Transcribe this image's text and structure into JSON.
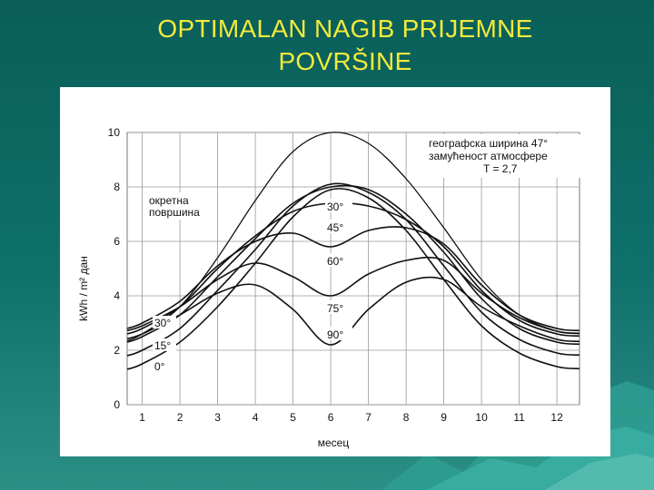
{
  "slide": {
    "title_line1": "OPTIMALAN NAGIB PRIJEMNE",
    "title_line2": "POVRŠINE"
  },
  "colors": {
    "title": "#f2ea3c",
    "background": "#0f706a",
    "curve": "#111111"
  },
  "chart_data": {
    "type": "line",
    "xlabel": "месец",
    "ylabel": "kWh / m² дан",
    "x": [
      1,
      2,
      3,
      4,
      5,
      6,
      7,
      8,
      9,
      10,
      11,
      12
    ],
    "xlim": [
      0.6,
      12.6
    ],
    "ylim": [
      0,
      10
    ],
    "xticks": [
      "1",
      "2",
      "3",
      "4",
      "5",
      "6",
      "7",
      "8",
      "9",
      "10",
      "11",
      "12"
    ],
    "yticks": [
      "0",
      "2",
      "4",
      "6",
      "8",
      "10"
    ],
    "grid": true,
    "annotation_lines": [
      "географска ширина 47°",
      "замућеност атмосфере",
      "T = 2,7"
    ],
    "series": [
      {
        "name": "окретна површина",
        "values": [
          2.6,
          3.6,
          5.4,
          7.5,
          9.3,
          10.0,
          9.6,
          8.3,
          6.5,
          4.6,
          3.3,
          2.7
        ]
      },
      {
        "name": "0°",
        "values": [
          1.5,
          2.3,
          3.6,
          5.2,
          6.9,
          7.9,
          7.6,
          6.4,
          4.6,
          2.9,
          1.9,
          1.4
        ]
      },
      {
        "name": "15°",
        "values": [
          2.0,
          2.8,
          4.2,
          5.7,
          7.3,
          8.1,
          7.8,
          6.8,
          5.1,
          3.4,
          2.4,
          1.9
        ]
      },
      {
        "name": "30°",
        "values": [
          2.5,
          3.3,
          4.7,
          6.1,
          7.4,
          8.0,
          7.9,
          7.0,
          5.6,
          3.9,
          2.8,
          2.3
        ]
      },
      {
        "name": "45°",
        "values": [
          2.8,
          3.6,
          5.0,
          6.2,
          7.1,
          7.4,
          7.3,
          6.8,
          5.8,
          4.2,
          3.1,
          2.6
        ]
      },
      {
        "name": "60°",
        "values": [
          3.0,
          3.8,
          5.1,
          6.0,
          6.3,
          5.8,
          6.4,
          6.5,
          5.9,
          4.4,
          3.3,
          2.8
        ]
      },
      {
        "name": "75°",
        "values": [
          2.9,
          3.6,
          4.6,
          5.2,
          4.7,
          4.0,
          4.8,
          5.3,
          5.3,
          4.1,
          3.2,
          2.7
        ]
      },
      {
        "name": "90°",
        "values": [
          2.6,
          3.3,
          4.1,
          4.4,
          3.5,
          2.2,
          3.5,
          4.5,
          4.6,
          3.6,
          2.9,
          2.4
        ]
      }
    ]
  }
}
